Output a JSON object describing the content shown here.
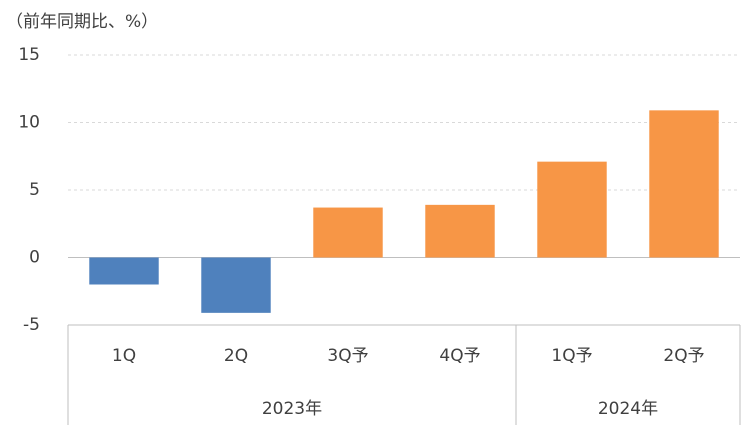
{
  "chart_data": {
    "type": "bar",
    "title": "（前年同期比、%）",
    "categories": [
      "1Q",
      "2Q",
      "3Q予",
      "4Q予",
      "1Q予",
      "2Q予"
    ],
    "x_groups": [
      "2023年",
      "2023年",
      "2023年",
      "2023年",
      "2024年",
      "2024年"
    ],
    "values": [
      -2.0,
      -4.1,
      3.7,
      3.9,
      7.1,
      10.9
    ],
    "colors": [
      "#4f81bd",
      "#4f81bd",
      "#f79646",
      "#f79646",
      "#f79646",
      "#f79646"
    ],
    "ylim": [
      -5,
      15
    ],
    "yticks": [
      -5,
      0,
      5,
      10,
      15
    ],
    "grid": true
  }
}
